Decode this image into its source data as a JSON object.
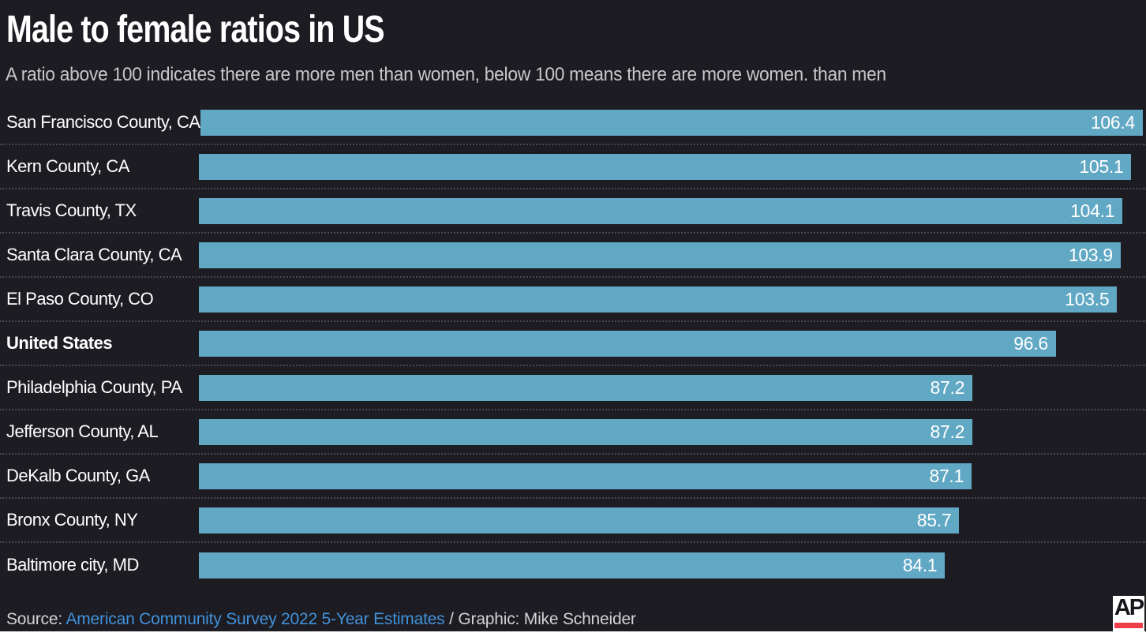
{
  "page": {
    "background": "#1c1c22",
    "bottom_strip_color": "#ffffff"
  },
  "header": {
    "title": "Male to female ratios in US",
    "subtitle": "A ratio above 100 indicates there are more men than women, below 100 means there are more women. than men"
  },
  "chart_data": {
    "type": "bar",
    "orientation": "horizontal",
    "categories": [
      "San Francisco County, CA",
      "Kern County, CA",
      "Travis County, TX",
      "Santa Clara County, CA",
      "El Paso County, CO",
      "United States",
      "Philadelphia County, PA",
      "Jefferson County, AL",
      "DeKalb County, GA",
      "Bronx County, NY",
      "Baltimore city, MD"
    ],
    "values": [
      106.4,
      105.1,
      104.1,
      103.9,
      103.5,
      96.6,
      87.2,
      87.2,
      87.1,
      85.7,
      84.1
    ],
    "value_axis_min": 0,
    "value_axis_max": 106.4,
    "highlight_index": 5,
    "bar_color": "#61a8c4",
    "value_label_color": "#ffffff",
    "value_labels_position": "inside-end",
    "grid": false,
    "legend": "none",
    "row_separator": "dotted"
  },
  "footer": {
    "source_prefix": "Source: ",
    "source_link": "American Community Survey 2022 5-Year Estimates",
    "source_suffix": " / Graphic: Mike Schneider",
    "link_color": "#4292dc"
  },
  "logo": {
    "text": "AP",
    "bar_color": "#ef3e4a"
  }
}
